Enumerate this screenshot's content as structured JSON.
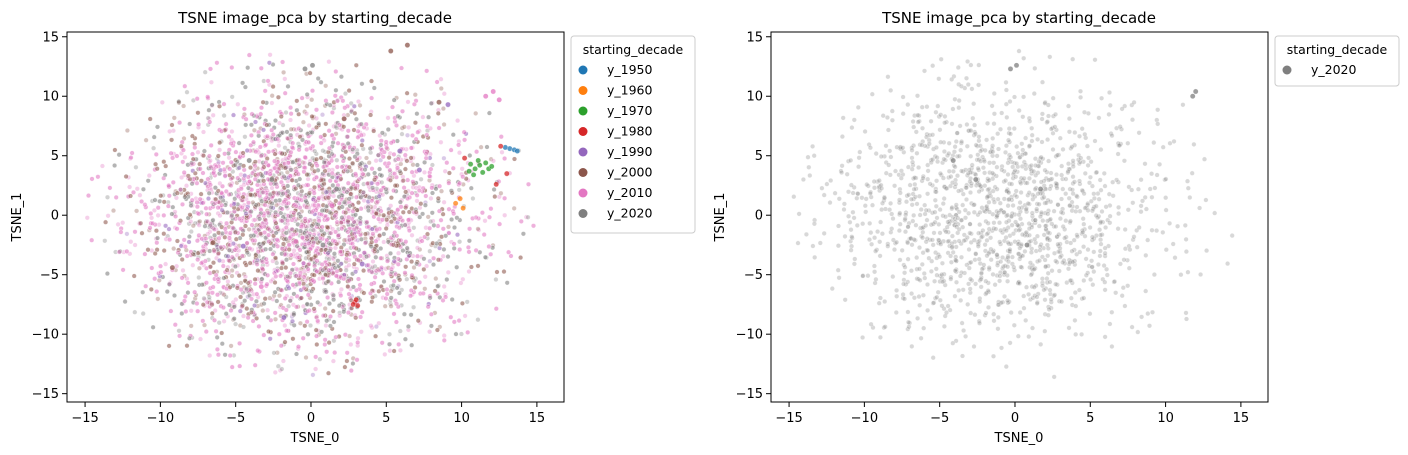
{
  "chart_data": [
    {
      "type": "scatter",
      "title": "TSNE image_pca by starting_decade",
      "xlabel": "TSNE_0",
      "ylabel": "TSNE_1",
      "xlim": [
        -16.2,
        16.8
      ],
      "ylim": [
        -15.7,
        15.4
      ],
      "xticks": [
        -15,
        -10,
        -5,
        0,
        5,
        10,
        15
      ],
      "yticks": [
        -15,
        -10,
        -5,
        0,
        5,
        10,
        15
      ],
      "legend_title": "starting_decade",
      "legend_position": "outside-right",
      "point_alpha": 0.35,
      "series": [
        {
          "name": "y_1950",
          "color": "#1f77b4",
          "points": [
            [
              13.2,
              5.6
            ],
            [
              13.5,
              5.5
            ],
            [
              13.7,
              5.4
            ],
            [
              12.9,
              5.7
            ]
          ]
        },
        {
          "name": "y_1960",
          "color": "#ff7f0e",
          "points": [
            [
              9.6,
              1.0
            ],
            [
              10.1,
              0.6
            ],
            [
              9.9,
              1.4
            ]
          ]
        },
        {
          "name": "y_1970",
          "color": "#2ca02c",
          "points": [
            [
              10.6,
              4.3
            ],
            [
              10.9,
              3.9
            ],
            [
              11.2,
              4.2
            ],
            [
              11.4,
              3.6
            ],
            [
              11.8,
              3.9
            ],
            [
              10.8,
              3.4
            ],
            [
              11.1,
              4.6
            ],
            [
              12.0,
              4.1
            ],
            [
              10.5,
              3.7
            ],
            [
              11.6,
              4.4
            ]
          ]
        },
        {
          "name": "y_1980",
          "color": "#d62728",
          "points": [
            [
              2.9,
              -7.3
            ],
            [
              3.1,
              -7.6
            ],
            [
              3.0,
              -7.1
            ],
            [
              2.8,
              -7.5
            ],
            [
              12.3,
              2.6
            ],
            [
              13.0,
              3.5
            ],
            [
              10.2,
              4.8
            ],
            [
              12.6,
              5.8
            ]
          ]
        },
        {
          "name": "y_1990",
          "color": "#9467bd",
          "points": [
            [
              7.2,
              3.8
            ],
            [
              -4.5,
              -2.6
            ],
            [
              3.4,
              -4.1
            ],
            [
              9.1,
              9.3
            ],
            [
              -1.8,
              -8.6
            ],
            [
              5.9,
              5.4
            ]
          ]
        },
        {
          "name": "y_2000",
          "color": "#8c564b",
          "points": [
            [
              -6.5,
              -2.3
            ],
            [
              5.3,
              13.8
            ],
            [
              6.4,
              14.3
            ],
            [
              8.5,
              9.5
            ],
            [
              -9.2,
              -4.4
            ],
            [
              2.2,
              8.1
            ]
          ]
        },
        {
          "name": "y_2010",
          "color": "#e377c2",
          "points": [
            [
              12.1,
              10.4
            ],
            [
              11.6,
              10.0
            ],
            [
              12.5,
              9.7
            ],
            [
              -1.0,
              -2.2
            ],
            [
              -3.3,
              -6.0
            ],
            [
              1.4,
              0.8
            ]
          ]
        },
        {
          "name": "y_2020",
          "color": "#7f7f7f",
          "points": [
            [
              0.1,
              12.6
            ],
            [
              -0.4,
              12.3
            ],
            [
              -2.6,
              3.0
            ],
            [
              0.8,
              -2.5
            ],
            [
              -4.1,
              4.6
            ],
            [
              1.7,
              2.2
            ]
          ]
        }
      ]
    },
    {
      "type": "scatter",
      "title": "TSNE image_pca by starting_decade",
      "xlabel": "TSNE_0",
      "ylabel": "TSNE_1",
      "xlim": [
        -16.2,
        16.8
      ],
      "ylim": [
        -15.7,
        15.4
      ],
      "xticks": [
        -15,
        -10,
        -5,
        0,
        5,
        10,
        15
      ],
      "yticks": [
        -15,
        -10,
        -5,
        0,
        5,
        10,
        15
      ],
      "legend_title": "starting_decade",
      "legend_position": "outside-right",
      "point_alpha": 0.3,
      "series": [
        {
          "name": "y_2020",
          "color": "#7f7f7f",
          "points": [
            [
              0.1,
              12.6
            ],
            [
              -0.3,
              12.3
            ],
            [
              12.0,
              10.4
            ],
            [
              11.8,
              10.0
            ],
            [
              -2.6,
              3.0
            ],
            [
              0.8,
              -2.5
            ],
            [
              -4.1,
              4.6
            ],
            [
              1.7,
              2.2
            ]
          ]
        }
      ]
    }
  ]
}
